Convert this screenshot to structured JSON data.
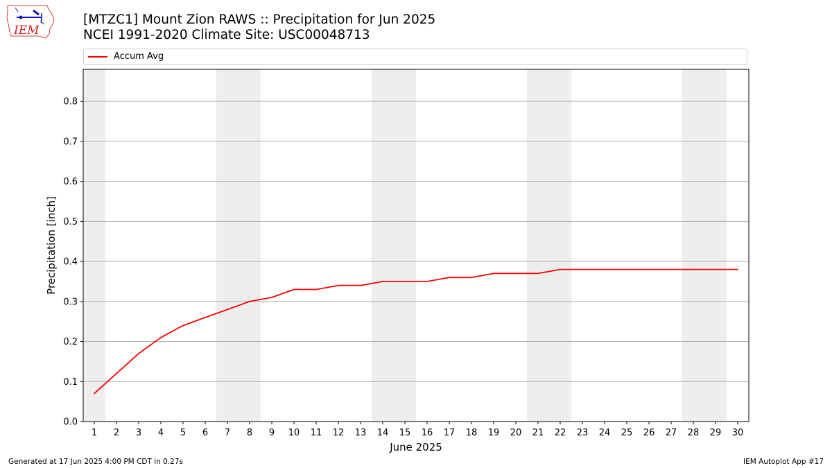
{
  "header": {
    "title_line1": "[MTZC1] Mount Zion RAWS :: Precipitation for Jun 2025",
    "title_line2": "NCEI 1991-2020 Climate Site: USC00048713"
  },
  "logo": {
    "text": "IEM",
    "icon": "iem-iowa-logo-icon"
  },
  "footer": {
    "left": "Generated at 17 Jun 2025 4:00 PM CDT in 0.27s",
    "right": "IEM Autoplot App #17"
  },
  "colors": {
    "series": "#ff0000",
    "weekend": "#eeeeee",
    "grid": "#b0b0b0"
  },
  "chart_data": {
    "type": "line",
    "xlabel": "June 2025",
    "ylabel": "Precipitation [inch]",
    "xlim": [
      0.5,
      30.5
    ],
    "ylim": [
      0,
      0.88
    ],
    "yticks": [
      0.0,
      0.1,
      0.2,
      0.3,
      0.4,
      0.5,
      0.6,
      0.7,
      0.8
    ],
    "ytick_labels": [
      "0.0",
      "0.1",
      "0.2",
      "0.3",
      "0.4",
      "0.5",
      "0.6",
      "0.7",
      "0.8"
    ],
    "xticks": [
      1,
      2,
      3,
      4,
      5,
      6,
      7,
      8,
      9,
      10,
      11,
      12,
      13,
      14,
      15,
      16,
      17,
      18,
      19,
      20,
      21,
      22,
      23,
      24,
      25,
      26,
      27,
      28,
      29,
      30
    ],
    "xtick_labels": [
      "1",
      "2",
      "3",
      "4",
      "5",
      "6",
      "7",
      "8",
      "9",
      "10",
      "11",
      "12",
      "13",
      "14",
      "15",
      "16",
      "17",
      "18",
      "19",
      "20",
      "21",
      "22",
      "23",
      "24",
      "25",
      "26",
      "27",
      "28",
      "29",
      "30"
    ],
    "grid": "y",
    "legend_placement": "top",
    "weekend_days": [
      1,
      7,
      8,
      14,
      15,
      21,
      22,
      28,
      29
    ],
    "series": [
      {
        "name": "Accum Avg",
        "x": [
          1,
          2,
          3,
          4,
          5,
          6,
          7,
          8,
          9,
          10,
          11,
          12,
          13,
          14,
          15,
          16,
          17,
          18,
          19,
          20,
          21,
          22,
          23,
          24,
          25,
          26,
          27,
          28,
          29,
          30
        ],
        "values": [
          0.07,
          0.12,
          0.17,
          0.21,
          0.24,
          0.26,
          0.28,
          0.3,
          0.31,
          0.33,
          0.33,
          0.34,
          0.34,
          0.35,
          0.35,
          0.35,
          0.36,
          0.36,
          0.37,
          0.37,
          0.37,
          0.38,
          0.38,
          0.38,
          0.38,
          0.38,
          0.38,
          0.38,
          0.38,
          0.38
        ]
      }
    ]
  }
}
